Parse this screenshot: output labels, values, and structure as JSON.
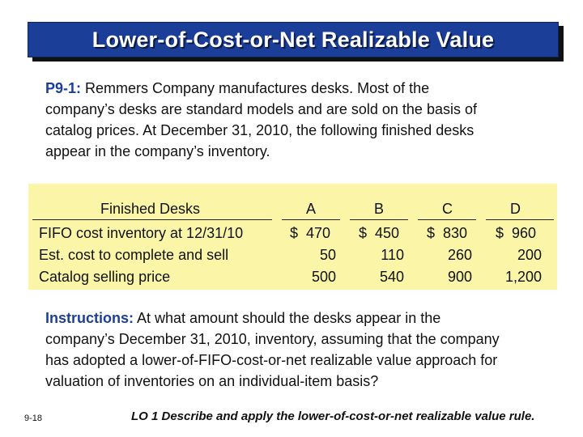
{
  "header": {
    "title": "Lower-of-Cost-or-Net Realizable Value"
  },
  "problem": {
    "label": "P9-1:",
    "lines": [
      " Remmers Company manufactures desks. Most of the",
      "company’s desks are standard models and are sold on the basis of",
      "catalog prices. At December 31, 2010, the following finished desks",
      "appear in the company’s inventory."
    ]
  },
  "table": {
    "header_label": "Finished Desks",
    "columns": [
      "A",
      "B",
      "C",
      "D"
    ],
    "rows": [
      {
        "label": "FIFO cost inventory at 12/31/10",
        "values": [
          "$  470",
          "$  450",
          "$  830",
          "$  960"
        ]
      },
      {
        "label": "Est. cost to complete and sell",
        "values": [
          "50",
          "110",
          "260",
          "200"
        ]
      },
      {
        "label": "Catalog selling price",
        "values": [
          "500",
          "540",
          "900",
          "1,200"
        ]
      }
    ],
    "background_color": "#fbf5a8"
  },
  "instructions": {
    "label": "Instructions:",
    "lines": [
      " At what amount should the desks appear in the",
      "company’s December 31, 2010, inventory, assuming that the company",
      "has adopted a lower-of-FIFO-cost-or-net realizable value approach for",
      "valuation of inventories on an individual-item basis?"
    ]
  },
  "footer": {
    "slide_number": "9-18",
    "learning_objective": "LO 1  Describe and apply the lower-of-cost-or-net realizable value rule."
  },
  "colors": {
    "title_bar": "#1b3f99",
    "label_blue": "#1b3f99"
  }
}
